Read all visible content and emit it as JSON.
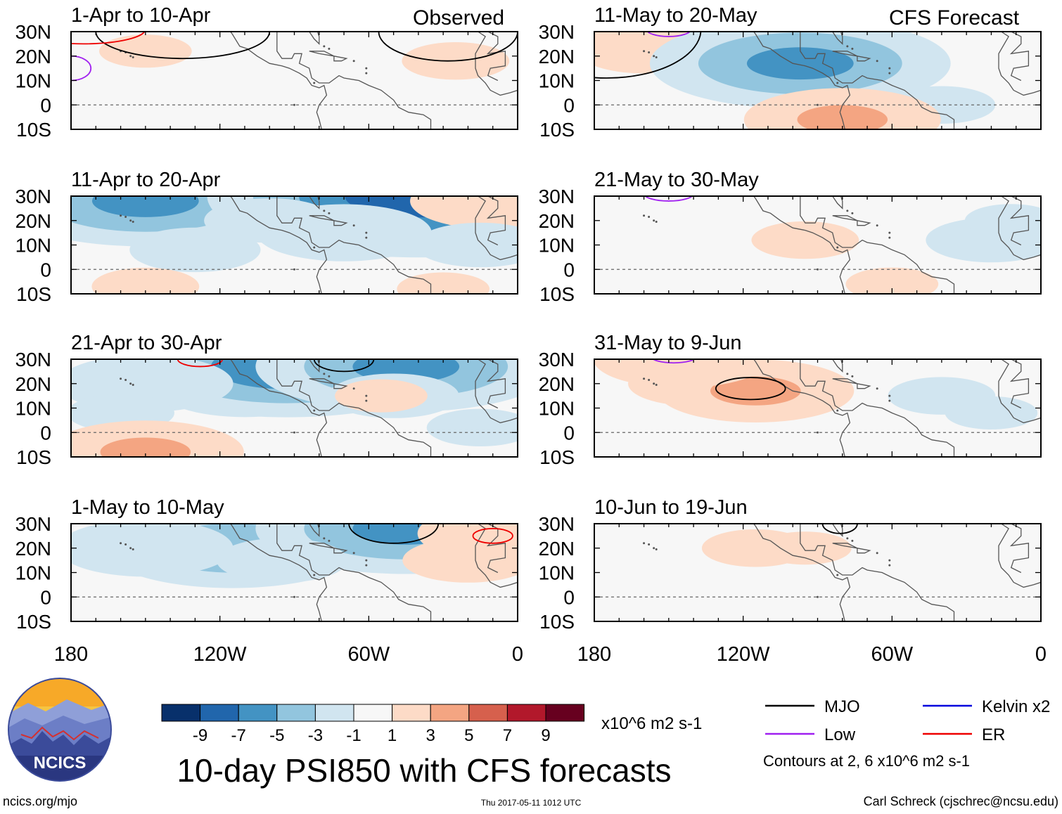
{
  "figure_title": "10-day PSI850 with CFS forecasts",
  "observed_label": "Observed",
  "forecast_label": "CFS Forecast",
  "footer": {
    "left": "ncics.org/mjo",
    "center": "Thu 2017-05-11 1012 UTC",
    "right": "Carl Schreck (cjschrec@ncsu.edu)"
  },
  "logo_text": "NCICS",
  "colorbar": {
    "unit_label": "x10^6 m2 s-1",
    "ticks": [
      "-9",
      "-7",
      "-5",
      "-3",
      "-1",
      "1",
      "3",
      "5",
      "7",
      "9"
    ],
    "colors": [
      "#08306b",
      "#2166ac",
      "#4393c3",
      "#92c5de",
      "#d1e5f0",
      "#f7f7f7",
      "#fddbc7",
      "#f4a582",
      "#d6604d",
      "#b2182b",
      "#67001f"
    ]
  },
  "legend": {
    "items": [
      {
        "label": "MJO",
        "color": "#000000"
      },
      {
        "label": "Kelvin x2",
        "color": "#0000dd"
      },
      {
        "label": "Low",
        "color": "#a020f0"
      },
      {
        "label": "ER",
        "color": "#ee0000"
      }
    ],
    "note": "Contours at 2, 6 x10^6 m2 s-1"
  },
  "chart_data": {
    "type": "heatmap",
    "variable": "PSI850 anomaly",
    "units": "x10^6 m2 s-1",
    "x_axis": {
      "range": [
        -180,
        0
      ],
      "ticks": [
        -180,
        -120,
        -60,
        0
      ],
      "tick_labels": [
        "180",
        "120W",
        "60W",
        "0"
      ]
    },
    "y_axis": {
      "range": [
        -10,
        30
      ],
      "ticks": [
        30,
        20,
        10,
        0,
        -10
      ],
      "tick_labels": [
        "30N",
        "20N",
        "10N",
        "0",
        "10S"
      ]
    },
    "panels": [
      {
        "title": "1-Apr to 10-Apr",
        "group": "observed",
        "blobs": [
          {
            "lon": -150,
            "lat": 22,
            "v": 1.2
          },
          {
            "lon": -25,
            "lat": 18,
            "v": 1.5
          },
          {
            "lon": -90,
            "lat": 2,
            "v": 1.0
          },
          {
            "lon": -155,
            "lat": 2,
            "v": 1.0
          },
          {
            "lon": -40,
            "lat": -6,
            "v": 1.0
          },
          {
            "lon": -120,
            "lat": 5,
            "v": 0.8
          }
        ],
        "contours": [
          {
            "type": "MJO",
            "lon": -135,
            "lat": 30,
            "rx": 35,
            "ry": 11
          },
          {
            "type": "MJO",
            "lon": -28,
            "lat": 30,
            "rx": 28,
            "ry": 12
          },
          {
            "type": "ER",
            "lon": -175,
            "lat": 31,
            "rx": 25,
            "ry": 6
          },
          {
            "type": "Low",
            "lon": -180,
            "lat": 15,
            "rx": 8,
            "ry": 5
          }
        ]
      },
      {
        "title": "11-Apr to 20-Apr",
        "group": "observed",
        "blobs": [
          {
            "lon": -140,
            "lat": 25,
            "v": -4
          },
          {
            "lon": -150,
            "lat": 28,
            "v": -6
          },
          {
            "lon": -42,
            "lat": 26,
            "v": -6
          },
          {
            "lon": -40,
            "lat": 30,
            "v": -9
          },
          {
            "lon": -70,
            "lat": 15,
            "v": -3
          },
          {
            "lon": -100,
            "lat": 20,
            "v": -2
          },
          {
            "lon": -130,
            "lat": 8,
            "v": -2
          },
          {
            "lon": -8,
            "lat": 28,
            "v": 3
          },
          {
            "lon": -150,
            "lat": -7,
            "v": 1.5
          },
          {
            "lon": -30,
            "lat": -8,
            "v": 1.2
          },
          {
            "lon": -15,
            "lat": 10,
            "v": -2
          }
        ],
        "contours": []
      },
      {
        "title": "21-Apr to 30-Apr",
        "group": "observed",
        "blobs": [
          {
            "lon": -110,
            "lat": 18,
            "v": -3
          },
          {
            "lon": -93,
            "lat": 27,
            "v": -7
          },
          {
            "lon": -150,
            "lat": 20,
            "v": -3
          },
          {
            "lon": -45,
            "lat": 27,
            "v": -6
          },
          {
            "lon": -50,
            "lat": 15,
            "v": -2
          },
          {
            "lon": -160,
            "lat": 8,
            "v": -1.5
          },
          {
            "lon": -150,
            "lat": -8,
            "v": 3.5
          },
          {
            "lon": -55,
            "lat": 15,
            "v": 1.2
          },
          {
            "lon": -15,
            "lat": 2,
            "v": -1.5
          }
        ],
        "contours": [
          {
            "type": "ER",
            "lon": -128,
            "lat": 30,
            "rx": 9,
            "ry": 3
          },
          {
            "type": "MJO",
            "lon": -70,
            "lat": 30,
            "rx": 12,
            "ry": 5
          }
        ]
      },
      {
        "title": "1-May to 10-May",
        "group": "observed",
        "blobs": [
          {
            "lon": -115,
            "lat": 20,
            "v": -5
          },
          {
            "lon": -150,
            "lat": 20,
            "v": -3
          },
          {
            "lon": -45,
            "lat": 28,
            "v": -6
          },
          {
            "lon": -95,
            "lat": 15,
            "v": -2
          },
          {
            "lon": -20,
            "lat": 15,
            "v": 2
          },
          {
            "lon": -5,
            "lat": 26,
            "v": 3
          },
          {
            "lon": -55,
            "lat": 0,
            "v": 1.0
          },
          {
            "lon": -150,
            "lat": -8,
            "v": 1.0
          }
        ],
        "contours": [
          {
            "type": "MJO",
            "lon": -50,
            "lat": 30,
            "rx": 18,
            "ry": 8
          },
          {
            "type": "ER",
            "lon": -10,
            "lat": 25,
            "rx": 8,
            "ry": 3
          }
        ]
      },
      {
        "title": "11-May to 20-May",
        "group": "forecast",
        "blobs": [
          {
            "lon": -160,
            "lat": 22,
            "v": 2
          },
          {
            "lon": -150,
            "lat": 28,
            "v": 3
          },
          {
            "lon": -95,
            "lat": 18,
            "v": -3
          },
          {
            "lon": -97,
            "lat": 17,
            "v": -6
          },
          {
            "lon": -40,
            "lat": 0,
            "v": -1.5
          },
          {
            "lon": -20,
            "lat": 25,
            "v": 1.0
          },
          {
            "lon": -80,
            "lat": -6,
            "v": 3.5
          },
          {
            "lon": -110,
            "lat": 0,
            "v": 1.0
          }
        ],
        "contours": [
          {
            "type": "MJO",
            "lon": -175,
            "lat": 31,
            "rx": 38,
            "ry": 20
          },
          {
            "type": "Low",
            "lon": -150,
            "lat": 31,
            "rx": 9,
            "ry": 3
          }
        ]
      },
      {
        "title": "21-May to 30-May",
        "group": "forecast",
        "blobs": [
          {
            "lon": -95,
            "lat": 12,
            "v": 1.5
          },
          {
            "lon": -60,
            "lat": -6,
            "v": 1.2
          },
          {
            "lon": -20,
            "lat": 12,
            "v": -2
          },
          {
            "lon": -12,
            "lat": 20,
            "v": -1.2
          },
          {
            "lon": -130,
            "lat": 28,
            "v": 1.0
          },
          {
            "lon": -115,
            "lat": 10,
            "v": -1.0
          }
        ],
        "contours": [
          {
            "type": "Low",
            "lon": -150,
            "lat": 31,
            "rx": 10,
            "ry": 3
          }
        ]
      },
      {
        "title": "31-May to 9-Jun",
        "group": "forecast",
        "blobs": [
          {
            "lon": -140,
            "lat": 20,
            "v": 2
          },
          {
            "lon": -115,
            "lat": 17,
            "v": 3.5
          },
          {
            "lon": -40,
            "lat": 15,
            "v": -1.5
          },
          {
            "lon": -20,
            "lat": 8,
            "v": -1.2
          },
          {
            "lon": -100,
            "lat": -6,
            "v": -1.0
          },
          {
            "lon": -145,
            "lat": 30,
            "v": 3
          }
        ],
        "contours": [
          {
            "type": "MJO",
            "lon": -117,
            "lat": 18,
            "rx": 14,
            "ry": 4.5
          },
          {
            "type": "Low",
            "lon": -148,
            "lat": 31,
            "rx": 9,
            "ry": 2.5
          }
        ]
      },
      {
        "title": "10-Jun to 19-Jun",
        "group": "forecast",
        "blobs": [
          {
            "lon": -115,
            "lat": 20,
            "v": 1.5
          },
          {
            "lon": -95,
            "lat": 20,
            "v": 1.2
          },
          {
            "lon": -30,
            "lat": 0,
            "v": 1.0
          },
          {
            "lon": -170,
            "lat": 15,
            "v": -1.0
          },
          {
            "lon": -40,
            "lat": 22,
            "v": -1.0
          }
        ],
        "contours": [
          {
            "type": "MJO",
            "lon": -81,
            "lat": 30,
            "rx": 7,
            "ry": 4
          }
        ]
      }
    ]
  }
}
